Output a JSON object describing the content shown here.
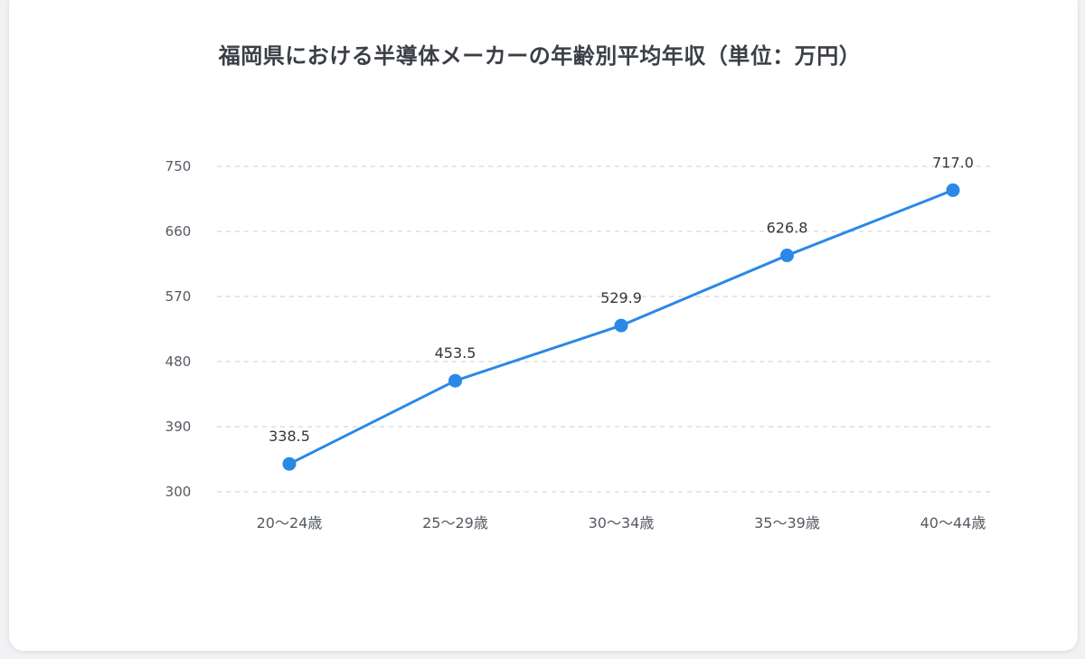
{
  "chart_data": {
    "type": "line",
    "title": "福岡県における半導体メーカーの年齢別平均年収（単位：万円）",
    "categories": [
      "20〜24歳",
      "25〜29歳",
      "30〜34歳",
      "35〜39歳",
      "40〜44歳"
    ],
    "series": [
      {
        "values": [
          338.5,
          453.5,
          529.9,
          626.8,
          717.0
        ],
        "labels": [
          "338.5",
          "453.5",
          "529.9",
          "626.8",
          "717.0"
        ],
        "color": "#2b88e6"
      }
    ],
    "ylim": [
      300,
      750
    ],
    "yticks": [
      300,
      390,
      480,
      570,
      660,
      750
    ],
    "grid": true,
    "legend": "none"
  }
}
